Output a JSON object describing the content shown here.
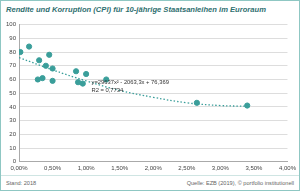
{
  "chart_data": {
    "type": "scatter",
    "title": "Rendite und Korruption (CPI) für 10-jährige Staatsanleihen im Euroraum",
    "annotations": [
      "y=29637x² - 2063,3x + 76,369",
      "R2 = 0,7734"
    ],
    "footnote": "Stand: 2018",
    "source": "Quelle: EZB (2019), © portfolio institutionell",
    "series": [
      {
        "type": "scatter",
        "color": "#3a9e9a",
        "marker": "circle",
        "x": [
          0.02,
          0.15,
          0.3,
          0.28,
          0.35,
          0.4,
          0.45,
          0.5,
          0.5,
          0.85,
          0.88,
          0.95,
          1.0,
          1.3,
          2.65,
          3.4
        ],
        "values": [
          80,
          84,
          74,
          60,
          61,
          70,
          78,
          68,
          59,
          66,
          58,
          57,
          64,
          60,
          43,
          41
        ]
      },
      {
        "type": "line",
        "color": "#3a9e9a",
        "line_style": "dotted",
        "x": [
          0.0,
          0.5,
          1.0,
          1.5,
          2.0,
          2.5,
          3.0,
          3.4
        ],
        "values": [
          76,
          67,
          59,
          52,
          47,
          43,
          41,
          40.5
        ]
      }
    ],
    "xlim": [
      0,
      4
    ],
    "xticks": [
      {
        "value": 0,
        "label": "0,00%"
      },
      {
        "value": 0.5,
        "label": "0,50%"
      },
      {
        "value": 1,
        "label": "1,00%"
      },
      {
        "value": 1.5,
        "label": "1,50%"
      },
      {
        "value": 2,
        "label": "2,00%"
      },
      {
        "value": 2.5,
        "label": "2,50%"
      },
      {
        "value": 3,
        "label": "3,00%"
      },
      {
        "value": 3.5,
        "label": "3,50%"
      },
      {
        "value": 4,
        "label": "4,00%"
      }
    ],
    "ylim": [
      0,
      100
    ],
    "yticks": [
      0,
      10,
      20,
      30,
      40,
      50,
      60,
      70,
      80,
      90,
      100
    ],
    "grid": "y"
  }
}
